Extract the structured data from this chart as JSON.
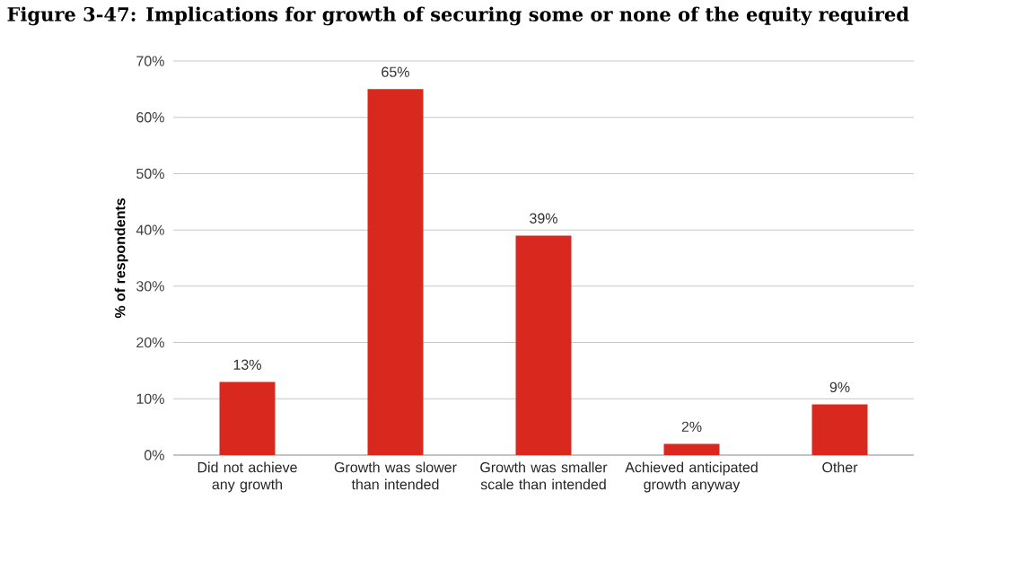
{
  "chart_data": {
    "type": "bar",
    "title": "Figure 3-47: Implications for growth of securing some or none of the equity required",
    "ylabel": "% of respondents",
    "categories": [
      "Did not achieve any growth",
      "Growth was slower than intended",
      "Growth was smaller scale than intended",
      "Achieved anticipated growth anyway",
      "Other"
    ],
    "values": [
      13,
      65,
      39,
      2,
      9
    ],
    "value_labels": [
      "13%",
      "65%",
      "39%",
      "2%",
      "9%"
    ],
    "color": "#d9281e",
    "ylim": [
      0,
      70
    ],
    "yticks": [
      {
        "value": 0,
        "label": "0%"
      },
      {
        "value": 10,
        "label": "10%"
      },
      {
        "value": 20,
        "label": "20%"
      },
      {
        "value": 30,
        "label": "30%"
      },
      {
        "value": 40,
        "label": "40%"
      },
      {
        "value": 50,
        "label": "50%"
      },
      {
        "value": 60,
        "label": "60%"
      },
      {
        "value": 70,
        "label": "70%"
      }
    ],
    "grid": "y"
  }
}
